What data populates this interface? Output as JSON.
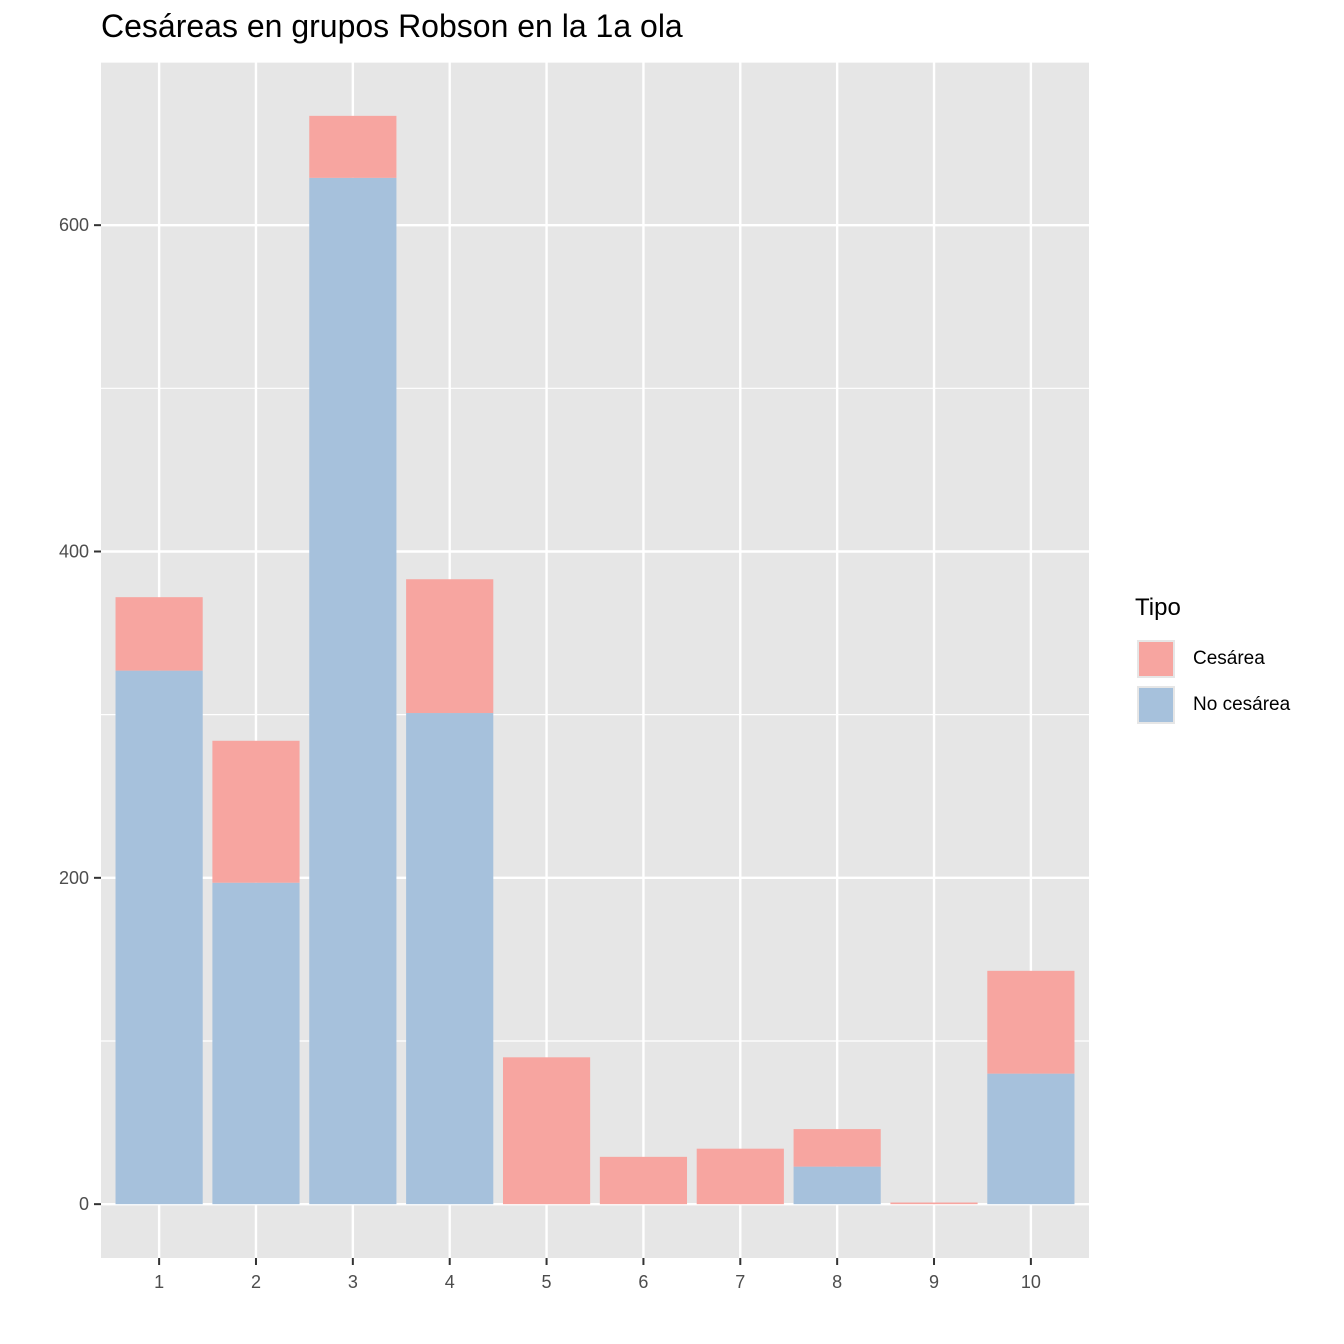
{
  "chart_data": {
    "type": "bar",
    "stacked": true,
    "title": "Cesáreas en grupos Robson en la 1a ola",
    "xlabel": "",
    "ylabel": "",
    "categories": [
      "1",
      "2",
      "3",
      "4",
      "5",
      "6",
      "7",
      "8",
      "9",
      "10"
    ],
    "series": [
      {
        "name": "No cesárea",
        "color": "#a6c1dc",
        "values": [
          327,
          197,
          629,
          301,
          0,
          0,
          0,
          23,
          0,
          80
        ]
      },
      {
        "name": "Cesárea",
        "color": "#f7a5a0",
        "values": [
          45,
          87,
          38,
          82,
          90,
          29,
          34,
          23,
          1,
          63
        ]
      }
    ],
    "stack_order_bottom_to_top": [
      "No cesárea",
      "Cesárea"
    ],
    "ylim": [
      -33,
      700
    ],
    "yticks": [
      0,
      200,
      400,
      600
    ],
    "grid": true,
    "legend": {
      "title": "Tipo",
      "position": "right",
      "entries": [
        "Cesárea",
        "No cesárea"
      ]
    }
  }
}
